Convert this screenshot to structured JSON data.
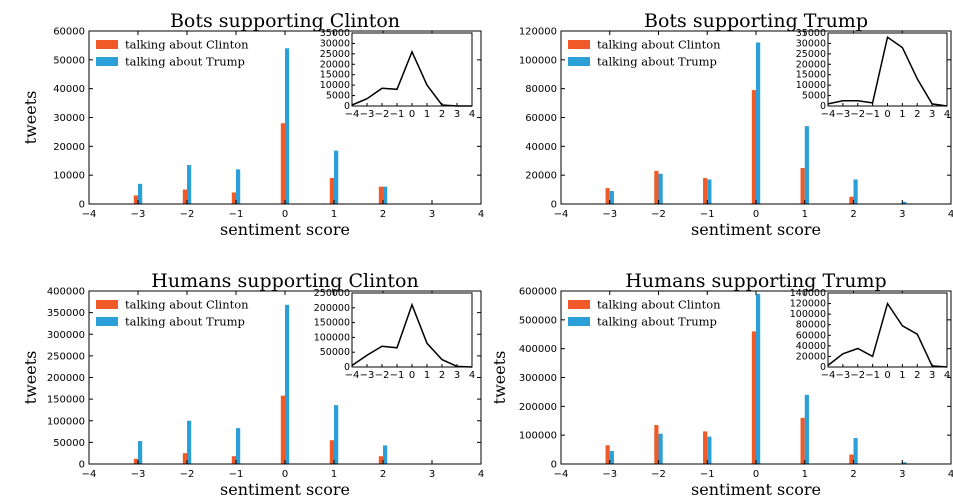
{
  "chart_data": [
    {
      "type": "bar",
      "title": "Bots supporting Clinton",
      "xlabel": "sentiment score",
      "ylabel": "tweets",
      "x": [
        -3,
        -2,
        -1,
        0,
        1,
        2
      ],
      "xlim": [
        -4,
        4
      ],
      "ylim": [
        0,
        60000
      ],
      "xticks": [
        "−4",
        "−3",
        "−2",
        "−1",
        "0",
        "1",
        "2",
        "3",
        "4"
      ],
      "yticks": [
        "0",
        "10000",
        "20000",
        "30000",
        "40000",
        "50000",
        "60000"
      ],
      "legend_position": "top-left",
      "series": [
        {
          "name": "talking about Clinton",
          "color": "#f05a28",
          "values": [
            3000,
            5000,
            4000,
            28000,
            9000,
            6000
          ]
        },
        {
          "name": "talking about Trump",
          "color": "#2a9fd8",
          "values": [
            7000,
            13500,
            12000,
            54000,
            18500,
            6000
          ]
        }
      ],
      "inset": {
        "type": "line",
        "position": "top-right",
        "x": [
          -4,
          -3,
          -2,
          -1,
          0,
          1,
          2,
          3,
          4
        ],
        "y": [
          500,
          3500,
          8500,
          8000,
          26000,
          10000,
          500,
          0,
          0
        ],
        "xlim": [
          -4,
          4
        ],
        "ylim": [
          0,
          35000
        ],
        "xticks": [
          "−4",
          "−3",
          "−2",
          "−1",
          "0",
          "1",
          "2",
          "3",
          "4"
        ],
        "yticks": [
          "0",
          "5000",
          "10000",
          "15000",
          "20000",
          "25000",
          "30000",
          "35000"
        ]
      }
    },
    {
      "type": "bar",
      "title": "Bots supporting Trump",
      "xlabel": "sentiment score",
      "ylabel": "",
      "x": [
        -3,
        -2,
        -1,
        0,
        1,
        2,
        3
      ],
      "xlim": [
        -4,
        4
      ],
      "ylim": [
        0,
        120000
      ],
      "xticks": [
        "−4",
        "−3",
        "−2",
        "−1",
        "0",
        "1",
        "2",
        "3",
        "4"
      ],
      "yticks": [
        "0",
        "20000",
        "40000",
        "60000",
        "80000",
        "100000",
        "120000"
      ],
      "legend_position": "top-left",
      "series": [
        {
          "name": "talking about Clinton",
          "color": "#f05a28",
          "values": [
            11000,
            23000,
            18000,
            79000,
            25000,
            5000,
            0
          ]
        },
        {
          "name": "talking about Trump",
          "color": "#2a9fd8",
          "values": [
            9000,
            21000,
            17000,
            112000,
            54000,
            17000,
            1500
          ]
        }
      ],
      "inset": {
        "type": "line",
        "position": "top-right",
        "x": [
          -4,
          -3,
          -2,
          -1,
          0,
          1,
          2,
          3,
          4
        ],
        "y": [
          1000,
          2500,
          2500,
          1500,
          33000,
          28000,
          13000,
          1000,
          0
        ],
        "xlim": [
          -4,
          4
        ],
        "ylim": [
          0,
          35000
        ],
        "xticks": [
          "−4",
          "−3",
          "−2",
          "−1",
          "0",
          "1",
          "2",
          "3",
          "4"
        ],
        "yticks": [
          "0",
          "5000",
          "10000",
          "15000",
          "20000",
          "25000",
          "30000",
          "35000"
        ]
      }
    },
    {
      "type": "bar",
      "title": "Humans supporting Clinton",
      "xlabel": "sentiment score",
      "ylabel": "tweets",
      "x": [
        -3,
        -2,
        -1,
        0,
        1,
        2
      ],
      "xlim": [
        -4,
        4
      ],
      "ylim": [
        0,
        400000
      ],
      "xticks": [
        "−4",
        "−3",
        "−2",
        "−1",
        "0",
        "1",
        "2",
        "3",
        "4"
      ],
      "yticks": [
        "0",
        "50000",
        "100000",
        "150000",
        "200000",
        "250000",
        "300000",
        "350000",
        "400000"
      ],
      "legend_position": "top-left",
      "series": [
        {
          "name": "talking about Clinton",
          "color": "#f05a28",
          "values": [
            12000,
            25000,
            18000,
            158000,
            55000,
            18000
          ]
        },
        {
          "name": "talking about Trump",
          "color": "#2a9fd8",
          "values": [
            53000,
            100000,
            83000,
            368000,
            136000,
            43000
          ]
        }
      ],
      "inset": {
        "type": "line",
        "position": "top-right",
        "x": [
          -4,
          -3,
          -2,
          -1,
          0,
          1,
          2,
          3,
          4
        ],
        "y": [
          5000,
          40000,
          70000,
          65000,
          210000,
          80000,
          25000,
          2000,
          0
        ],
        "xlim": [
          -4,
          4
        ],
        "ylim": [
          0,
          250000
        ],
        "xticks": [
          "−4",
          "−3",
          "−2",
          "−1",
          "0",
          "1",
          "2",
          "3",
          "4"
        ],
        "yticks": [
          "0",
          "50000",
          "100000",
          "150000",
          "200000",
          "250000"
        ]
      }
    },
    {
      "type": "bar",
      "title": "Humans supporting Trump",
      "xlabel": "sentiment score",
      "ylabel": "tweets",
      "x": [
        -3,
        -2,
        -1,
        0,
        1,
        2,
        3
      ],
      "xlim": [
        -4,
        4
      ],
      "ylim": [
        0,
        600000
      ],
      "xticks": [
        "−4",
        "−3",
        "−2",
        "−1",
        "0",
        "1",
        "2",
        "3",
        "4"
      ],
      "yticks": [
        "0",
        "100000",
        "200000",
        "300000",
        "400000",
        "500000",
        "600000"
      ],
      "legend_position": "top-left",
      "series": [
        {
          "name": "talking about Clinton",
          "color": "#f05a28",
          "values": [
            65000,
            135000,
            113000,
            460000,
            160000,
            33000,
            0
          ]
        },
        {
          "name": "talking about Trump",
          "color": "#2a9fd8",
          "values": [
            45000,
            105000,
            95000,
            590000,
            240000,
            90000,
            6000
          ]
        }
      ],
      "inset": {
        "type": "line",
        "position": "top-right",
        "x": [
          -4,
          -3,
          -2,
          -1,
          0,
          1,
          2,
          3,
          4
        ],
        "y": [
          3000,
          25000,
          35000,
          20000,
          120000,
          78000,
          62000,
          2000,
          0
        ],
        "xlim": [
          -4,
          4
        ],
        "ylim": [
          0,
          140000
        ],
        "xticks": [
          "−4",
          "−3",
          "−2",
          "−1",
          "0",
          "1",
          "2",
          "3",
          "4"
        ],
        "yticks": [
          "0",
          "20000",
          "40000",
          "60000",
          "80000",
          "100000",
          "120000",
          "140000"
        ]
      }
    }
  ]
}
